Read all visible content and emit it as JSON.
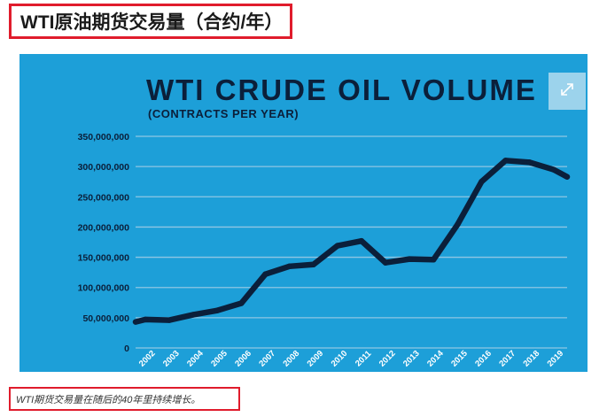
{
  "heading": "WTI原油期货交易量（合约/年）",
  "caption": "WTI期货交易量在随后的40年里持续增长。",
  "colors": {
    "background": "#1d9fd8",
    "line": "#0b1f3a",
    "text": "#0b1f3a",
    "grid": "#8fc6e3",
    "highlight": "#e01c2c"
  },
  "expand_icon": "expand-icon",
  "chart_data": {
    "type": "line",
    "title": "WTI CRUDE OIL VOLUME",
    "subtitle": "(CONTRACTS PER YEAR)",
    "x": [
      "2002",
      "2003",
      "2004",
      "2005",
      "2006",
      "2007",
      "2008",
      "2009",
      "2010",
      "2011",
      "2012",
      "2013",
      "2014",
      "2015",
      "2016",
      "2017",
      "2018",
      "2019"
    ],
    "yticks": [
      "0",
      "50,000,000",
      "100,000,000",
      "150,000,000",
      "200,000,000",
      "250,000,000",
      "300,000,000",
      "350,000,000"
    ],
    "ylim": [
      0,
      350000000
    ],
    "grid": true,
    "series": [
      {
        "values": [
          47000000,
          46000000,
          55000000,
          62000000,
          74000000,
          122000000,
          135000000,
          138000000,
          169000000,
          177000000,
          141000000,
          147000000,
          146000000,
          204000000,
          275000000,
          310000000,
          307000000,
          295000000
        ]
      }
    ],
    "x_extent": {
      "start_value": 43000000,
      "end_value": 283000000
    }
  }
}
